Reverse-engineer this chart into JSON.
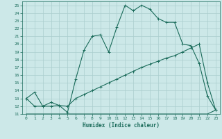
{
  "title": "",
  "xlabel": "Humidex (Indice chaleur)",
  "xlim": [
    -0.5,
    23.5
  ],
  "ylim": [
    11,
    25.5
  ],
  "yticks": [
    11,
    12,
    13,
    14,
    15,
    16,
    17,
    18,
    19,
    20,
    21,
    22,
    23,
    24,
    25
  ],
  "xticks": [
    0,
    1,
    2,
    3,
    4,
    5,
    6,
    7,
    8,
    9,
    10,
    11,
    12,
    13,
    14,
    15,
    16,
    17,
    18,
    19,
    20,
    21,
    22,
    23
  ],
  "bg_color": "#cce8e8",
  "line_color": "#1a6b5a",
  "grid_color": "#aacece",
  "series1_x": [
    0,
    1,
    2,
    3,
    4,
    5,
    6,
    7,
    8,
    9,
    10,
    11,
    12,
    13,
    14,
    15,
    16,
    17,
    18,
    19,
    20,
    21,
    22,
    23
  ],
  "series1_y": [
    13.0,
    13.8,
    12.0,
    12.0,
    12.1,
    11.2,
    15.5,
    19.2,
    21.0,
    21.2,
    19.0,
    22.2,
    25.0,
    24.3,
    25.0,
    24.5,
    23.3,
    22.8,
    22.8,
    20.0,
    19.8,
    17.5,
    13.3,
    11.5
  ],
  "series2_x": [
    0,
    1,
    2,
    3,
    4,
    5,
    6,
    7,
    8,
    9,
    10,
    11,
    12,
    13,
    14,
    15,
    16,
    17,
    18,
    19,
    20,
    21,
    22,
    23
  ],
  "series2_y": [
    13.0,
    12.0,
    12.0,
    12.5,
    12.1,
    12.0,
    13.0,
    13.5,
    14.0,
    14.5,
    15.0,
    15.5,
    16.0,
    16.5,
    17.0,
    17.4,
    17.8,
    18.2,
    18.5,
    19.0,
    19.5,
    20.0,
    15.0,
    11.5
  ],
  "series3_x": [
    0,
    10,
    22,
    23
  ],
  "series3_y": [
    11.0,
    11.0,
    11.0,
    11.5
  ]
}
